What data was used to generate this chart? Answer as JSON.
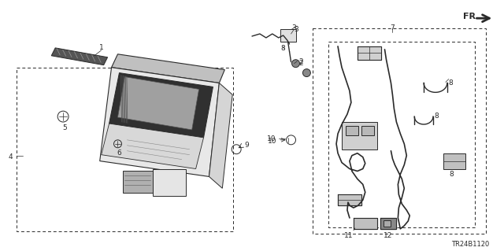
{
  "bg_color": "#ffffff",
  "line_color": "#2a2a2a",
  "fig_width": 6.4,
  "fig_height": 3.19,
  "dpi": 100,
  "diagram_code": "TR24B1120"
}
